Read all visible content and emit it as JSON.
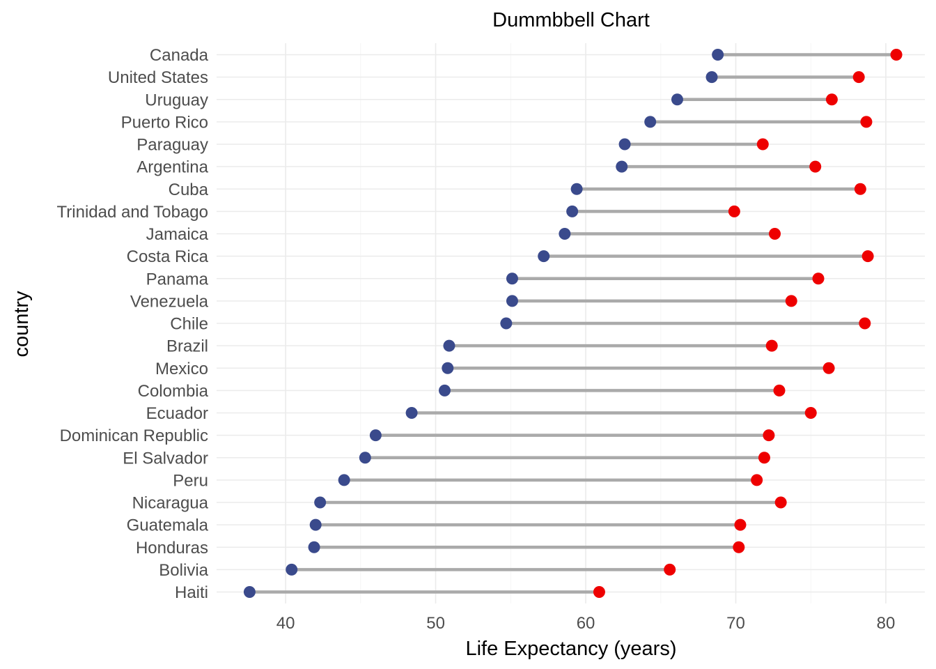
{
  "chart_data": {
    "type": "dumbbell",
    "title": "Dummbbell Chart",
    "xlabel": "Life Expectancy (years)",
    "ylabel": "country",
    "xlim": [
      35.4,
      82.6
    ],
    "xticks": [
      40,
      50,
      60,
      70,
      80
    ],
    "grid": true,
    "colors": {
      "start": "#3a4a8c",
      "end": "#ee0000",
      "segment": "#aaaaaa"
    },
    "countries": [
      "Canada",
      "United States",
      "Uruguay",
      "Puerto Rico",
      "Paraguay",
      "Argentina",
      "Cuba",
      "Trinidad and Tobago",
      "Jamaica",
      "Costa Rica",
      "Panama",
      "Venezuela",
      "Chile",
      "Brazil",
      "Mexico",
      "Colombia",
      "Ecuador",
      "Dominican Republic",
      "El Salvador",
      "Peru",
      "Nicaragua",
      "Guatemala",
      "Honduras",
      "Bolivia",
      "Haiti"
    ],
    "start_values": [
      68.8,
      68.4,
      66.1,
      64.3,
      62.6,
      62.4,
      59.4,
      59.1,
      58.6,
      57.2,
      55.1,
      55.1,
      54.7,
      50.9,
      50.8,
      50.6,
      48.4,
      46.0,
      45.3,
      43.9,
      42.3,
      42.0,
      41.9,
      40.4,
      37.6
    ],
    "end_values": [
      80.7,
      78.2,
      76.4,
      78.7,
      71.8,
      75.3,
      78.3,
      69.9,
      72.6,
      78.8,
      75.5,
      73.7,
      78.6,
      72.4,
      76.2,
      72.9,
      75.0,
      72.2,
      71.9,
      71.4,
      73.0,
      70.3,
      70.2,
      65.6,
      60.9
    ]
  }
}
